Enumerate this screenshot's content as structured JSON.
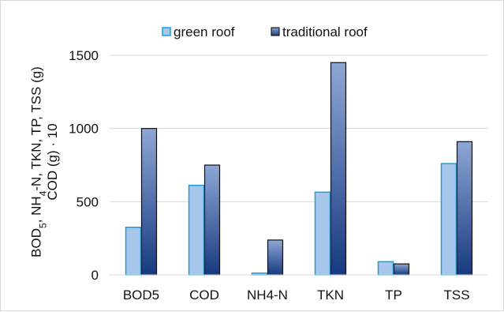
{
  "chart_data": {
    "type": "bar",
    "categories": [
      "BOD5",
      "COD",
      "NH4-N",
      "TKN",
      "TP",
      "TSS"
    ],
    "series": [
      {
        "name": "green roof",
        "values": [
          325,
          612,
          12,
          565,
          90,
          760
        ]
      },
      {
        "name": "traditional roof",
        "values": [
          1000,
          750,
          238,
          1450,
          75,
          910
        ]
      }
    ],
    "title": "",
    "xlabel": "",
    "ylabel_line1_parts": [
      "BOD",
      "5",
      ", NH",
      "4",
      "-N, TKN, TP, TSS (g)"
    ],
    "ylabel_line2": "COD (g) · 10",
    "ylim": [
      0,
      1500
    ],
    "yticks": [
      "0",
      "500",
      "1000",
      "1500"
    ],
    "grid": true,
    "legend_position": "top",
    "colors": {
      "green_roof_fill": "#a6c6ea",
      "green_roof_stroke": "#1aa0d9",
      "traditional_roof_top": "#8ea7d4",
      "traditional_roof_bottom": "#17397f",
      "traditional_roof_stroke": "#101010",
      "gridline": "#d9d9d9",
      "axis": "#d9d9d9"
    }
  }
}
